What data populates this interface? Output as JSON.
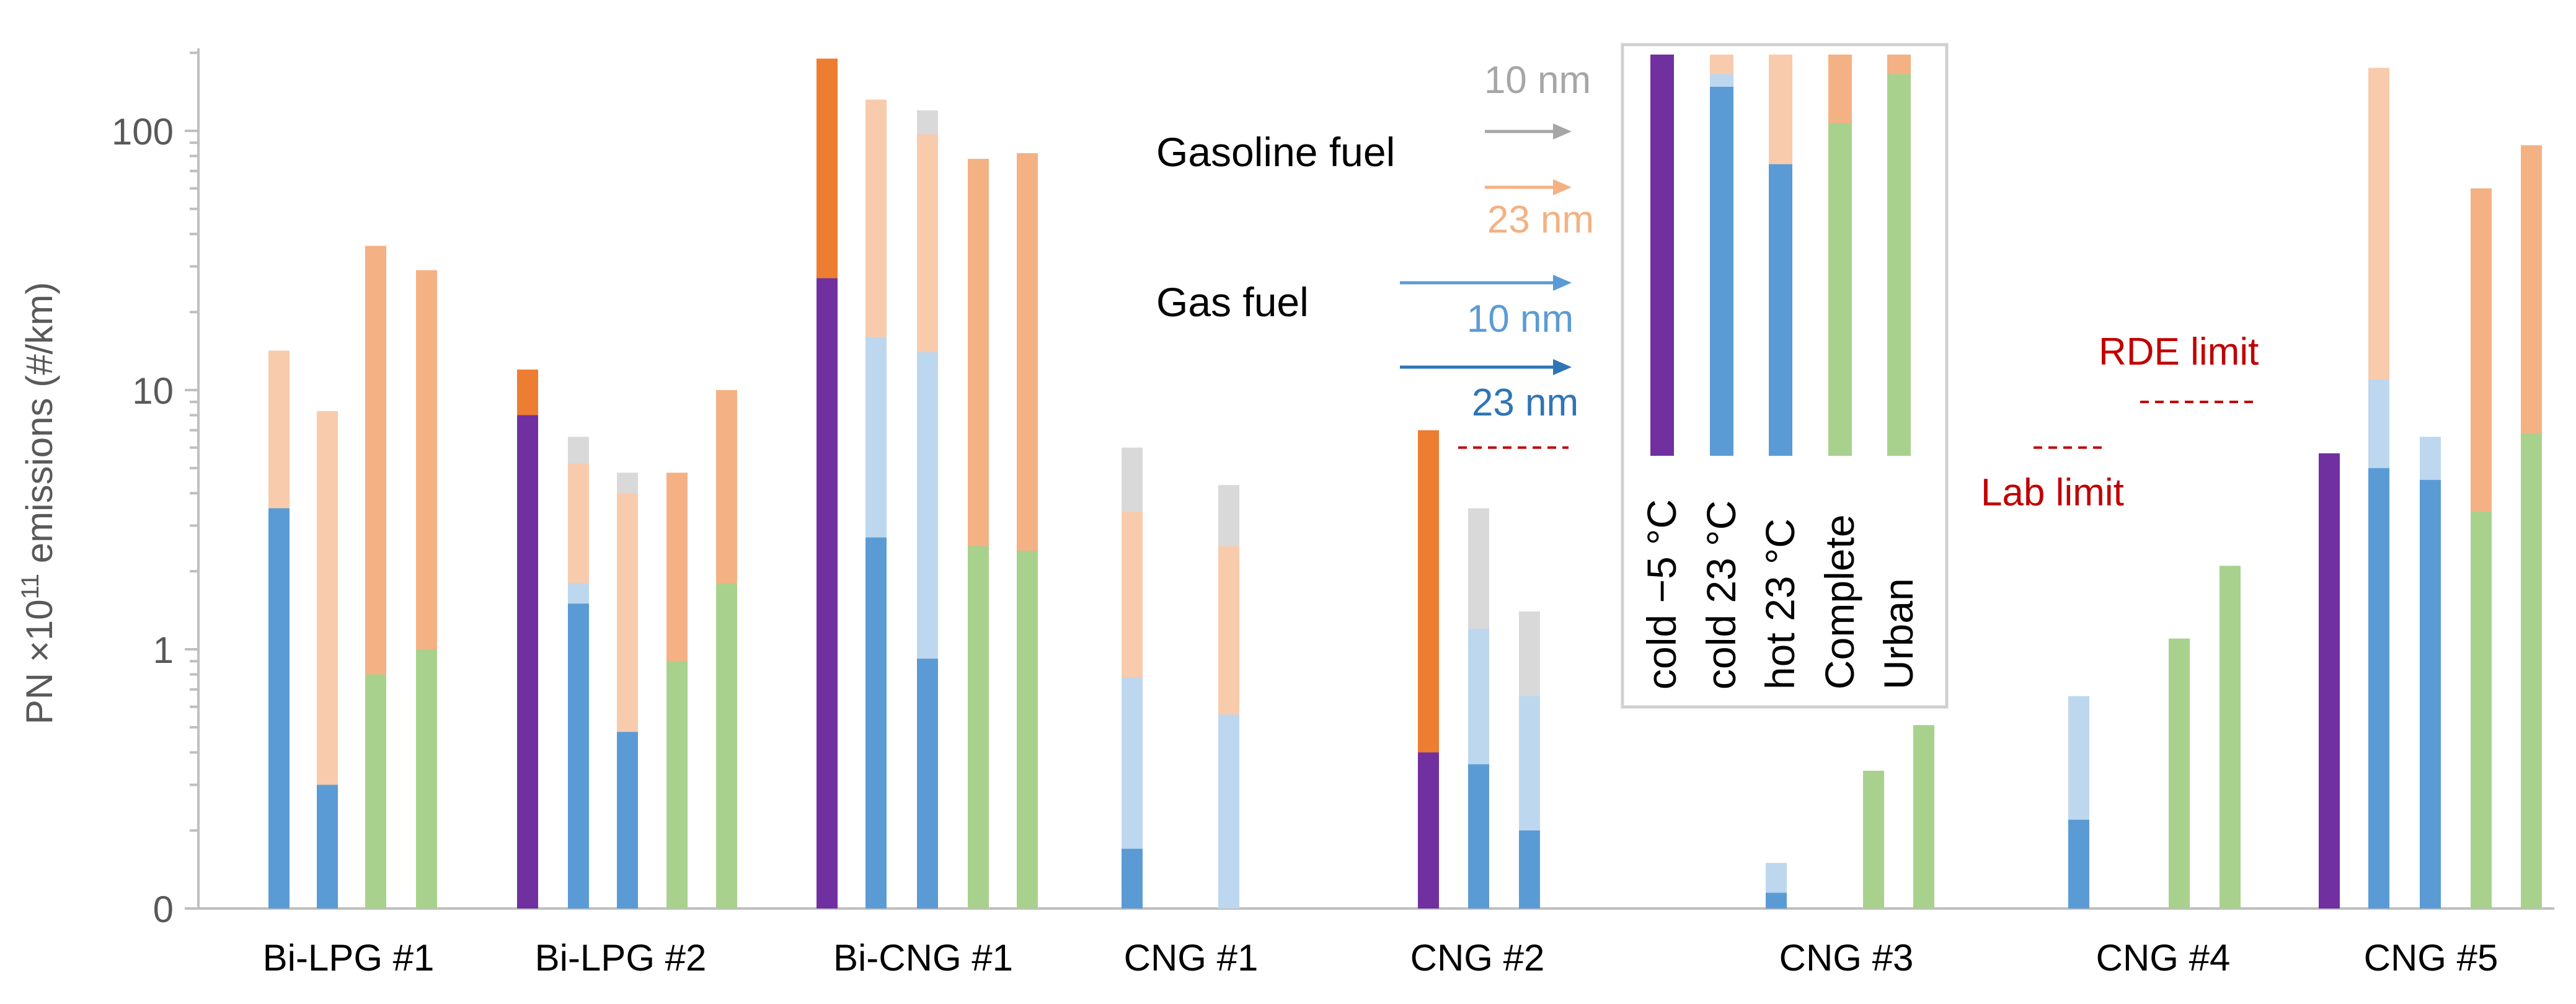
{
  "chart_data": {
    "type": "bar",
    "subtype": "overlapping bars, log-like y axis",
    "title": "",
    "ylabel": {
      "prefix": "PN ×10",
      "superscript": "11",
      "suffix": " emissions (#/km)"
    },
    "xlabel": "",
    "y_ticks": [
      {
        "label": "0",
        "value": 0.1
      },
      {
        "label": "1",
        "value": 1
      },
      {
        "label": "10",
        "value": 10
      },
      {
        "label": "100",
        "value": 100
      }
    ],
    "ylim": [
      0.1,
      200
    ],
    "categories": [
      "Bi-LPG #1",
      "Bi-LPG #2",
      "Bi-CNG #1",
      "CNG #1",
      "CNG #2",
      "CNG #3",
      "CNG #4",
      "CNG #5"
    ],
    "test_cycles": [
      "cold −5 °C",
      "cold 23 °C",
      "hot 23 °C",
      "Complete",
      "Urban"
    ],
    "colors": {
      "cold −5 °C": {
        "gas_23nm": "#7030a0",
        "gasoline_23nm": "#ed7d31"
      },
      "cold 23 °C": {
        "gas_23nm": "#5b9bd5",
        "gas_10nm": "#bdd7ee",
        "gasoline_23nm": "#f8cbad",
        "gasoline_10nm": "#d9d9d9"
      },
      "hot 23 °C": {
        "gas_23nm": "#5b9bd5",
        "gas_10nm": "#bdd7ee",
        "gasoline_23nm": "#f8cbad",
        "gasoline_10nm": "#d9d9d9"
      },
      "Complete": {
        "gas_23nm": "#a9d18e",
        "gasoline_23nm": "#f4b183"
      },
      "Urban": {
        "gas_23nm": "#a9d18e",
        "gasoline_23nm": "#f4b183"
      }
    },
    "bars": [
      {
        "category": "Bi-LPG #1",
        "cycle": "cold 23 °C",
        "gas_23nm": 3.5,
        "gasoline_23nm": 14.2
      },
      {
        "category": "Bi-LPG #1",
        "cycle": "hot 23 °C",
        "gas_23nm": 0.3,
        "gasoline_23nm": 8.3
      },
      {
        "category": "Bi-LPG #1",
        "cycle": "Complete",
        "gas_23nm": 0.8,
        "gasoline_23nm": 36
      },
      {
        "category": "Bi-LPG #1",
        "cycle": "Urban",
        "gas_23nm": 1.0,
        "gasoline_23nm": 29
      },
      {
        "category": "Bi-LPG #2",
        "cycle": "cold −5 °C",
        "gas_23nm": 8.0,
        "gasoline_23nm": 12
      },
      {
        "category": "Bi-LPG #2",
        "cycle": "cold 23 °C",
        "gas_23nm": 1.5,
        "gas_10nm": 1.8,
        "gasoline_23nm": 5.2,
        "gasoline_10nm": 6.6
      },
      {
        "category": "Bi-LPG #2",
        "cycle": "hot 23 °C",
        "gas_23nm": 0.48,
        "gasoline_23nm": 4.0,
        "gasoline_10nm": 4.8
      },
      {
        "category": "Bi-LPG #2",
        "cycle": "Complete",
        "gas_23nm": 0.9,
        "gasoline_23nm": 4.8
      },
      {
        "category": "Bi-LPG #2",
        "cycle": "Urban",
        "gas_23nm": 1.8,
        "gasoline_23nm": 10
      },
      {
        "category": "Bi-CNG #1",
        "cycle": "cold −5 °C",
        "gas_23nm": 27,
        "gasoline_23nm": 190
      },
      {
        "category": "Bi-CNG #1",
        "cycle": "cold 23 °C",
        "gas_23nm": 2.7,
        "gas_10nm": 16,
        "gasoline_23nm": 132
      },
      {
        "category": "Bi-CNG #1",
        "cycle": "hot 23 °C",
        "gas_23nm": 0.92,
        "gas_10nm": 14,
        "gasoline_23nm": 97,
        "gasoline_10nm": 120
      },
      {
        "category": "Bi-CNG #1",
        "cycle": "Complete",
        "gas_23nm": 2.5,
        "gasoline_23nm": 78
      },
      {
        "category": "Bi-CNG #1",
        "cycle": "Urban",
        "gas_23nm": 2.4,
        "gasoline_23nm": 82
      },
      {
        "category": "CNG #1",
        "cycle": "cold 23 °C",
        "gas_23nm": 0.17,
        "gas_10nm": 0.78,
        "gasoline_23nm": 3.4,
        "gasoline_10nm": 6.0
      },
      {
        "category": "CNG #1",
        "cycle": "hot 23 °C",
        "gas_10nm": 0.56,
        "gasoline_23nm": 2.5,
        "gasoline_10nm": 4.3
      },
      {
        "category": "CNG #2",
        "cycle": "cold −5 °C",
        "gas_23nm": 0.4,
        "gasoline_23nm": 7.0
      },
      {
        "category": "CNG #2",
        "cycle": "cold 23 °C",
        "gas_23nm": 0.36,
        "gas_10nm": 1.2,
        "gasoline_10nm": 3.5
      },
      {
        "category": "CNG #2",
        "cycle": "hot 23 °C",
        "gas_23nm": 0.2,
        "gas_10nm": 0.66,
        "gasoline_10nm": 1.4
      },
      {
        "category": "CNG #3",
        "cycle": "cold 23 °C",
        "gas_23nm": 0.115,
        "gas_10nm": 0.15
      },
      {
        "category": "CNG #3",
        "cycle": "Complete",
        "gas_23nm": 0.34
      },
      {
        "category": "CNG #3",
        "cycle": "Urban",
        "gas_23nm": 0.51
      },
      {
        "category": "CNG #4",
        "cycle": "cold 23 °C",
        "gas_23nm": 0.22,
        "gas_10nm": 0.66
      },
      {
        "category": "CNG #4",
        "cycle": "Complete",
        "gas_23nm": 1.1
      },
      {
        "category": "CNG #4",
        "cycle": "Urban",
        "gas_23nm": 2.1
      },
      {
        "category": "CNG #5",
        "cycle": "cold −5 °C",
        "gas_23nm": 5.7
      },
      {
        "category": "CNG #5",
        "cycle": "cold 23 °C",
        "gas_23nm": 5.0,
        "gas_10nm": 11,
        "gasoline_23nm": 175
      },
      {
        "category": "CNG #5",
        "cycle": "hot 23 °C",
        "gas_23nm": 4.5,
        "gas_10nm": 6.6
      },
      {
        "category": "CNG #5",
        "cycle": "Complete",
        "gas_23nm": 3.4,
        "gasoline_23nm": 60
      },
      {
        "category": "CNG #5",
        "cycle": "Urban",
        "gas_23nm": 6.8,
        "gasoline_23nm": 88
      }
    ],
    "legend": {
      "placement": "upper center",
      "fuel_labels": {
        "gasoline": "Gasoline fuel",
        "gas": "Gas fuel"
      },
      "size_labels": {
        "gasoline_10nm": "10 nm",
        "gasoline_23nm": "23 nm",
        "gas_10nm": "10 nm",
        "gas_23nm": "23 nm"
      },
      "size_colors": {
        "gasoline_10nm": "#a6a6a6",
        "gasoline_23nm": "#f4b183",
        "gas_10nm": "#5b9bd5",
        "gas_23nm": "#2e75b6"
      },
      "swatches": [
        {
          "label": "cold −5 °C",
          "gas": "#7030a0",
          "gas_value": 125,
          "gasoline": "#ed7d31",
          "gasoline_value": 190
        },
        {
          "label": "cold 23 °C",
          "gas": "#5b9bd5",
          "gas_value": 24,
          "gas10": "#bdd7ee",
          "gas10_value": 29,
          "gasoline": "#f8cbad",
          "gasoline_value": 85,
          "gasoline10": "#d9d9d9",
          "gasoline10_value": 105
        },
        {
          "label": "hot 23 °C",
          "gas": "#5b9bd5",
          "gas_value": 7.6,
          "gasoline": "#f8cbad",
          "gasoline_value": 63,
          "gasoline10": "#d9d9d9",
          "gasoline10_value": 78
        },
        {
          "label": "Complete",
          "gas": "#a9d18e",
          "gas_value": 14,
          "gasoline": "#f4b183",
          "gasoline_value": 78
        },
        {
          "label": "Urban",
          "gas": "#a9d18e",
          "gas_value": 29,
          "gasoline": "#f4b183",
          "gasoline_value": 160
        }
      ]
    },
    "limits": [
      {
        "label": "RDE limit",
        "value": 9.0,
        "color": "#c00000"
      },
      {
        "label": "Lab limit",
        "value": 6.0,
        "color": "#c00000"
      }
    ]
  }
}
